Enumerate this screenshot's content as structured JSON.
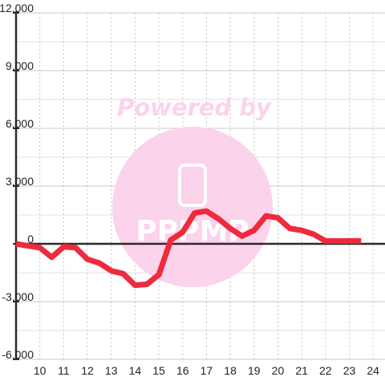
{
  "chart_data": {
    "type": "line",
    "title": "",
    "xlabel": "",
    "ylabel": "",
    "xlim": [
      9,
      24.5
    ],
    "ylim": [
      -6000,
      12000
    ],
    "x_ticks": [
      10,
      11,
      12,
      13,
      14,
      15,
      16,
      17,
      18,
      19,
      20,
      21,
      22,
      23,
      24
    ],
    "x_tick_labels": [
      "10",
      "11",
      "12",
      "13",
      "14",
      "15",
      "16",
      "17",
      "18",
      "19",
      "20",
      "21",
      "22",
      "23",
      "24"
    ],
    "y_ticks": [
      -6000,
      -3000,
      0,
      3000,
      6000,
      9000,
      12000
    ],
    "y_tick_labels": [
      "-6,000",
      "-3,000",
      "0",
      "3,000",
      "6,000",
      "9,000",
      "12,000"
    ],
    "grid": true,
    "series": [
      {
        "color": "#ee2a3d",
        "x": [
          9.0,
          9.5,
          10.0,
          10.5,
          11.0,
          11.5,
          12.0,
          12.5,
          13.0,
          13.5,
          14.0,
          14.5,
          15.0,
          15.5,
          16.0,
          16.5,
          17.0,
          17.5,
          18.0,
          18.5,
          19.0,
          19.5,
          20.0,
          20.5,
          21.0,
          21.5,
          22.0,
          22.5,
          23.0,
          23.5
        ],
        "y": [
          0,
          -100,
          -200,
          -700,
          -150,
          -200,
          -800,
          -1000,
          -1400,
          -1550,
          -2150,
          -2100,
          -1600,
          200,
          600,
          1600,
          1700,
          1300,
          800,
          400,
          700,
          1450,
          1350,
          800,
          700,
          500,
          150,
          150,
          150,
          150
        ]
      }
    ]
  },
  "watermark": {
    "text": "Powered by",
    "logo_text": "PPPMP",
    "color": "#fbd3ea"
  }
}
